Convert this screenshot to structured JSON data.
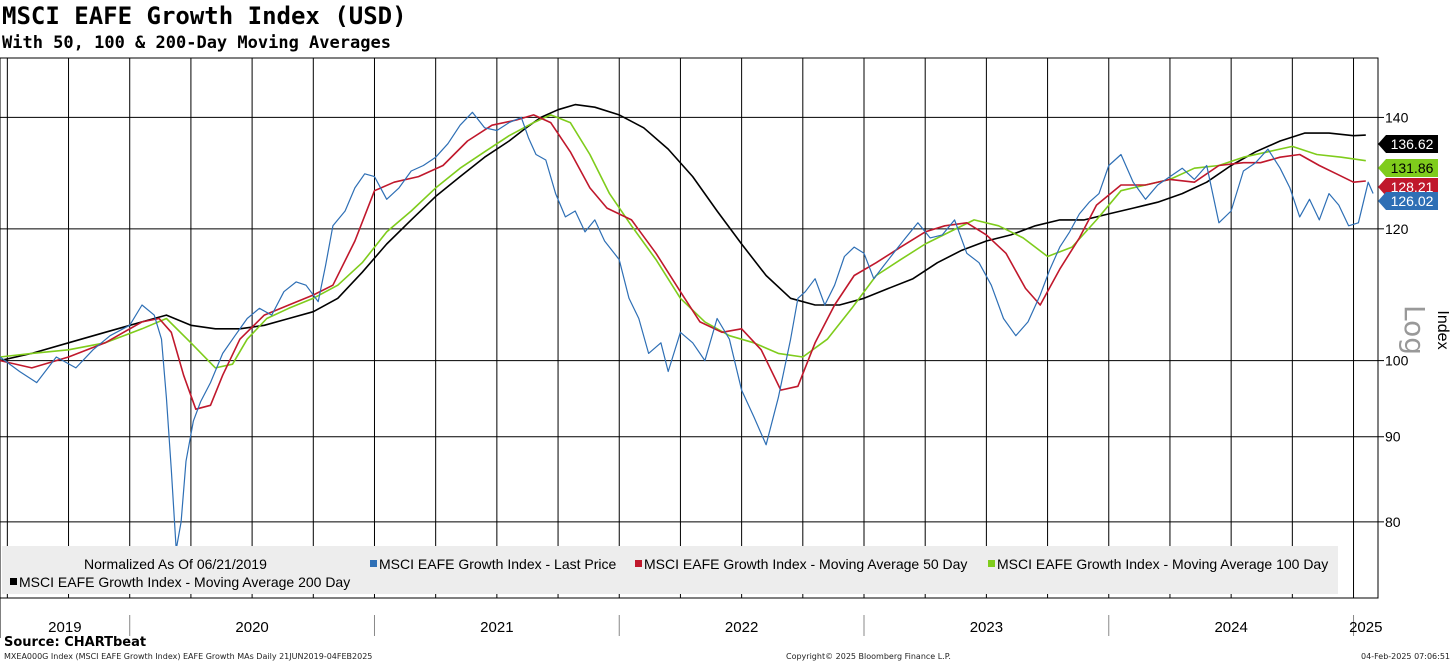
{
  "header": {
    "title": "MSCI EAFE Growth Index (USD)",
    "subtitle": "With 50, 100 & 200-Day Moving Averages"
  },
  "footer": {
    "source": "Source: CHARTbeat",
    "meta": "MXEA000G Index (MSCI EAFE Growth Index) EAFE Growth MAs Daily 21JUN2019-04FEB2025",
    "copyright": "Copyright© 2025 Bloomberg Finance L.P.",
    "timestamp": "04-Feb-2025 07:06:51"
  },
  "chart_data": {
    "type": "line",
    "title": "MSCI EAFE Growth Index (USD)",
    "ylabel": "Index",
    "scale_note": "Log",
    "normalized_note": "Normalized As Of 06/21/2019",
    "ylim": [
      72,
      152
    ],
    "y_ticks": [
      80,
      90,
      100,
      120,
      140
    ],
    "years": [
      "2019",
      "2020",
      "2021",
      "2022",
      "2023",
      "2024",
      "2025"
    ],
    "year_bounds": [
      2019.47,
      2020.0,
      2021.0,
      2022.0,
      2023.0,
      2024.0,
      2025.0,
      2025.1
    ],
    "colors": {
      "price": "#2e6fb5",
      "ma50": "#c0182c",
      "ma100": "#7fcc1c",
      "ma200": "#000000"
    },
    "series": [
      {
        "name": "MSCI EAFE Growth Index - Last Price",
        "key": "price",
        "last_value": "126.02",
        "t": [
          2019.47,
          2019.55,
          2019.62,
          2019.7,
          2019.78,
          2019.85,
          2019.92,
          2020.0,
          2020.05,
          2020.1,
          2020.13,
          2020.15,
          2020.17,
          2020.19,
          2020.21,
          2020.23,
          2020.26,
          2020.29,
          2020.33,
          2020.38,
          2020.43,
          2020.48,
          2020.53,
          2020.58,
          2020.63,
          2020.68,
          2020.72,
          2020.77,
          2020.8,
          2020.83,
          2020.88,
          2020.92,
          2020.96,
          2021.0,
          2021.05,
          2021.1,
          2021.15,
          2021.2,
          2021.25,
          2021.3,
          2021.35,
          2021.4,
          2021.45,
          2021.5,
          2021.55,
          2021.6,
          2021.63,
          2021.66,
          2021.7,
          2021.74,
          2021.78,
          2021.82,
          2021.86,
          2021.9,
          2021.94,
          2022.0,
          2022.04,
          2022.08,
          2022.12,
          2022.17,
          2022.2,
          2022.25,
          2022.3,
          2022.35,
          2022.4,
          2022.45,
          2022.5,
          2022.55,
          2022.6,
          2022.65,
          2022.7,
          2022.73,
          2022.76,
          2022.8,
          2022.84,
          2022.88,
          2022.92,
          2022.96,
          2023.0,
          2023.04,
          2023.08,
          2023.12,
          2023.17,
          2023.22,
          2023.27,
          2023.32,
          2023.37,
          2023.42,
          2023.47,
          2023.52,
          2023.57,
          2023.62,
          2023.67,
          2023.72,
          2023.76,
          2023.8,
          2023.84,
          2023.88,
          2023.92,
          2023.96,
          2024.0,
          2024.05,
          2024.1,
          2024.15,
          2024.2,
          2024.25,
          2024.3,
          2024.35,
          2024.4,
          2024.45,
          2024.5,
          2024.55,
          2024.6,
          2024.65,
          2024.7,
          2024.74,
          2024.78,
          2024.82,
          2024.86,
          2024.9,
          2024.94,
          2024.98,
          2025.02,
          2025.06,
          2025.08
        ],
        "values": [
          100.5,
          98.5,
          97.0,
          100.5,
          99.0,
          101.5,
          103.5,
          105.0,
          108.0,
          106.5,
          103.0,
          95.0,
          86.0,
          77.0,
          80.0,
          87.0,
          92.0,
          94.5,
          97.0,
          101.0,
          103.5,
          106.0,
          107.5,
          106.5,
          110.0,
          111.5,
          111.0,
          108.5,
          114.0,
          120.5,
          123.0,
          127.0,
          129.5,
          129.0,
          125.0,
          127.0,
          130.0,
          131.0,
          132.5,
          135.0,
          138.5,
          141.0,
          138.0,
          137.5,
          139.0,
          140.0,
          136.0,
          133.0,
          132.0,
          126.0,
          122.0,
          123.0,
          119.5,
          121.5,
          118.0,
          115.0,
          109.0,
          106.0,
          101.0,
          102.5,
          98.5,
          104.0,
          102.5,
          100.0,
          106.0,
          103.0,
          96.0,
          92.5,
          89.0,
          95.0,
          103.0,
          109.0,
          110.0,
          112.0,
          108.0,
          111.0,
          115.5,
          117.0,
          116.0,
          112.0,
          114.0,
          116.0,
          118.5,
          121.0,
          118.5,
          119.0,
          121.5,
          116.0,
          114.5,
          111.0,
          106.0,
          103.5,
          105.5,
          109.5,
          113.5,
          117.0,
          119.5,
          122.5,
          124.5,
          126.0,
          131.0,
          133.0,
          128.0,
          125.0,
          127.5,
          129.0,
          130.5,
          128.5,
          131.0,
          121.0,
          123.0,
          130.0,
          131.5,
          134.0,
          130.5,
          127.0,
          122.0,
          125.0,
          121.5,
          126.0,
          124.0,
          120.5,
          121.0,
          128.0,
          126.02
        ]
      },
      {
        "name": "MSCI EAFE Growth Index - Moving Average 50 Day",
        "key": "ma50",
        "last_value": "128.21",
        "t": [
          2019.47,
          2019.6,
          2019.75,
          2019.9,
          2020.05,
          2020.12,
          2020.17,
          2020.22,
          2020.27,
          2020.33,
          2020.38,
          2020.45,
          2020.55,
          2020.65,
          2020.75,
          2020.83,
          2020.92,
          2021.0,
          2021.08,
          2021.18,
          2021.28,
          2021.38,
          2021.48,
          2021.58,
          2021.65,
          2021.72,
          2021.8,
          2021.88,
          2021.95,
          2022.05,
          2022.15,
          2022.25,
          2022.33,
          2022.42,
          2022.5,
          2022.58,
          2022.66,
          2022.73,
          2022.8,
          2022.88,
          2022.96,
          2023.05,
          2023.15,
          2023.25,
          2023.33,
          2023.42,
          2023.5,
          2023.58,
          2023.66,
          2023.72,
          2023.8,
          2023.88,
          2023.95,
          2024.05,
          2024.15,
          2024.25,
          2024.35,
          2024.45,
          2024.55,
          2024.62,
          2024.7,
          2024.78,
          2024.86,
          2024.93,
          2025.0,
          2025.05
        ],
        "values": [
          100.0,
          99.0,
          100.5,
          102.5,
          105.5,
          106.0,
          104.0,
          98.0,
          93.5,
          94.0,
          98.0,
          103.0,
          106.5,
          108.0,
          109.5,
          111.0,
          118.0,
          126.5,
          128.0,
          129.0,
          131.0,
          135.5,
          138.5,
          139.5,
          140.5,
          139.0,
          133.5,
          127.0,
          123.5,
          121.5,
          116.0,
          110.0,
          105.5,
          104.0,
          104.5,
          101.5,
          96.0,
          96.5,
          102.5,
          108.0,
          112.5,
          114.5,
          117.0,
          119.5,
          120.5,
          121.0,
          119.0,
          116.0,
          110.5,
          108.0,
          113.5,
          118.5,
          124.0,
          127.5,
          127.5,
          128.5,
          128.0,
          131.0,
          131.5,
          131.5,
          132.5,
          133.0,
          131.0,
          129.5,
          128.0,
          128.21
        ]
      },
      {
        "name": "MSCI EAFE Growth Index - Moving Average 100 Day",
        "key": "ma100",
        "last_value": "131.86",
        "t": [
          2019.47,
          2019.6,
          2019.75,
          2019.9,
          2020.05,
          2020.15,
          2020.25,
          2020.35,
          2020.42,
          2020.48,
          2020.56,
          2020.65,
          2020.75,
          2020.85,
          2020.95,
          2021.05,
          2021.15,
          2021.25,
          2021.35,
          2021.45,
          2021.55,
          2021.65,
          2021.72,
          2021.8,
          2021.88,
          2021.96,
          2022.05,
          2022.15,
          2022.25,
          2022.35,
          2022.45,
          2022.55,
          2022.65,
          2022.75,
          2022.85,
          2022.95,
          2023.05,
          2023.15,
          2023.25,
          2023.35,
          2023.45,
          2023.55,
          2023.65,
          2023.75,
          2023.85,
          2023.95,
          2024.05,
          2024.15,
          2024.25,
          2024.35,
          2024.45,
          2024.55,
          2024.65,
          2024.75,
          2024.85,
          2024.95,
          2025.05
        ],
        "values": [
          100.5,
          101.0,
          101.5,
          102.5,
          104.5,
          106.0,
          102.5,
          99.0,
          99.5,
          103.0,
          106.0,
          107.5,
          109.0,
          111.0,
          114.5,
          119.5,
          123.0,
          127.0,
          130.5,
          133.5,
          136.5,
          139.0,
          140.5,
          139.0,
          133.0,
          126.0,
          120.5,
          115.0,
          109.0,
          105.5,
          103.5,
          102.5,
          101.0,
          100.5,
          103.0,
          107.5,
          112.5,
          115.0,
          117.5,
          119.5,
          121.5,
          120.5,
          118.5,
          115.5,
          117.0,
          121.5,
          126.5,
          127.5,
          128.5,
          130.5,
          131.0,
          132.5,
          133.5,
          134.5,
          133.0,
          132.5,
          131.86
        ]
      },
      {
        "name": "MSCI EAFE Growth Index - Moving Average 200 Day",
        "key": "ma200",
        "last_value": "136.62",
        "t": [
          2019.47,
          2019.6,
          2019.75,
          2019.9,
          2020.05,
          2020.15,
          2020.25,
          2020.35,
          2020.45,
          2020.55,
          2020.65,
          2020.75,
          2020.85,
          2020.95,
          2021.05,
          2021.15,
          2021.25,
          2021.35,
          2021.45,
          2021.55,
          2021.62,
          2021.68,
          2021.75,
          2021.82,
          2021.9,
          2022.0,
          2022.1,
          2022.2,
          2022.3,
          2022.4,
          2022.5,
          2022.6,
          2022.7,
          2022.8,
          2022.9,
          2023.0,
          2023.1,
          2023.2,
          2023.3,
          2023.4,
          2023.5,
          2023.6,
          2023.7,
          2023.8,
          2023.9,
          2024.0,
          2024.1,
          2024.2,
          2024.3,
          2024.4,
          2024.5,
          2024.6,
          2024.7,
          2024.8,
          2024.9,
          2025.0,
          2025.05
        ],
        "values": [
          100.0,
          101.0,
          102.5,
          104.0,
          105.5,
          106.5,
          105.0,
          104.5,
          104.5,
          105.0,
          106.0,
          107.0,
          109.0,
          113.0,
          117.5,
          121.5,
          125.5,
          129.0,
          132.5,
          135.5,
          138.0,
          140.0,
          141.5,
          142.5,
          142.0,
          140.5,
          138.0,
          134.0,
          129.0,
          123.0,
          117.5,
          112.5,
          109.0,
          108.0,
          108.0,
          109.0,
          110.5,
          112.0,
          114.5,
          116.5,
          118.0,
          119.0,
          120.5,
          121.5,
          121.5,
          122.5,
          123.5,
          124.5,
          126.0,
          128.0,
          131.0,
          133.5,
          135.5,
          137.0,
          137.0,
          136.5,
          136.62
        ]
      }
    ],
    "legend": [
      {
        "key": "price",
        "label": "MSCI EAFE Growth Index - Last Price"
      },
      {
        "key": "ma50",
        "label": "MSCI EAFE Growth Index - Moving Average 50 Day"
      },
      {
        "key": "ma100",
        "label": "MSCI EAFE Growth Index - Moving Average 100 Day"
      },
      {
        "key": "ma200",
        "label": "MSCI EAFE Growth Index - Moving Average 200 Day"
      }
    ]
  }
}
